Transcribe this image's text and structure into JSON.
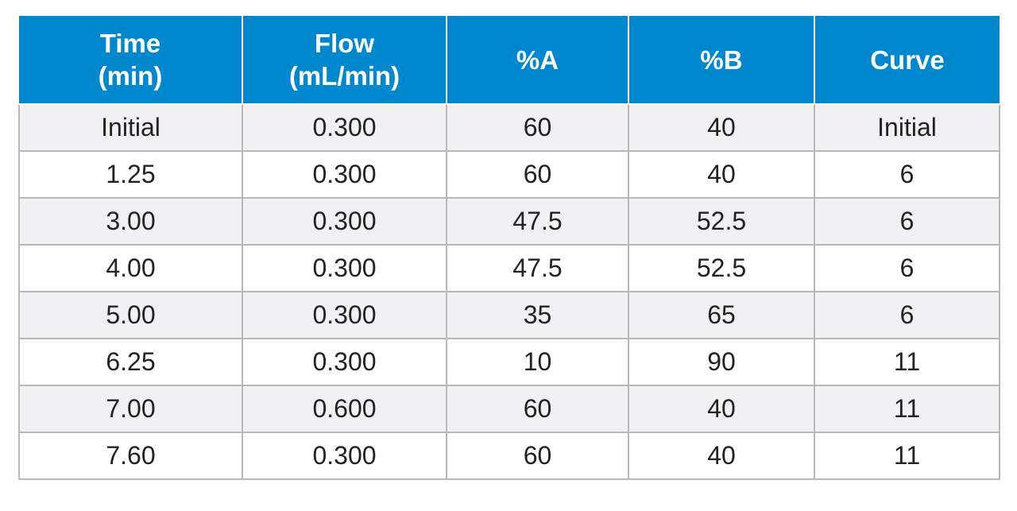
{
  "header": {
    "time_line1": "Time",
    "time_line2": "(min)",
    "flow_line1": "Flow",
    "flow_line2": "(mL/min)",
    "pct_a": "%A",
    "pct_b": "%B",
    "curve": "Curve"
  },
  "colors": {
    "header_bg": "#0088cf",
    "header_text": "#ffffff",
    "row_shade": "#f1f1f4",
    "row_plain": "#ffffff",
    "grid": "#b8b8b8"
  },
  "rows": [
    {
      "time": "Initial",
      "flow": "0.300",
      "a": "60",
      "b": "40",
      "curve": "Initial"
    },
    {
      "time": "1.25",
      "flow": "0.300",
      "a": "60",
      "b": "40",
      "curve": "6"
    },
    {
      "time": "3.00",
      "flow": "0.300",
      "a": "47.5",
      "b": "52.5",
      "curve": "6"
    },
    {
      "time": "4.00",
      "flow": "0.300",
      "a": "47.5",
      "b": "52.5",
      "curve": "6"
    },
    {
      "time": "5.00",
      "flow": "0.300",
      "a": "35",
      "b": "65",
      "curve": "6"
    },
    {
      "time": "6.25",
      "flow": "0.300",
      "a": "10",
      "b": "90",
      "curve": "11"
    },
    {
      "time": "7.00",
      "flow": "0.600",
      "a": "60",
      "b": "40",
      "curve": "11"
    },
    {
      "time": "7.60",
      "flow": "0.300",
      "a": "60",
      "b": "40",
      "curve": "11"
    }
  ]
}
